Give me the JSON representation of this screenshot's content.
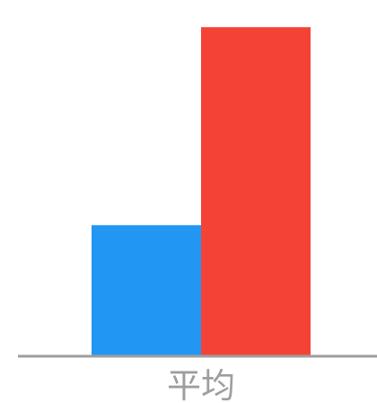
{
  "chart_data": {
    "type": "bar",
    "categories": [
      "平均"
    ],
    "series": [
      {
        "values": [
          47
        ],
        "color": "#2196F3"
      },
      {
        "values": [
          118
        ],
        "color": "#F44336"
      }
    ],
    "xlabel": "",
    "ylabel": "",
    "ylim": [
      0,
      120
    ],
    "grid": false,
    "legend": "none",
    "axis_color": "#9E9E9E",
    "label_color": "#9E9E9E"
  }
}
